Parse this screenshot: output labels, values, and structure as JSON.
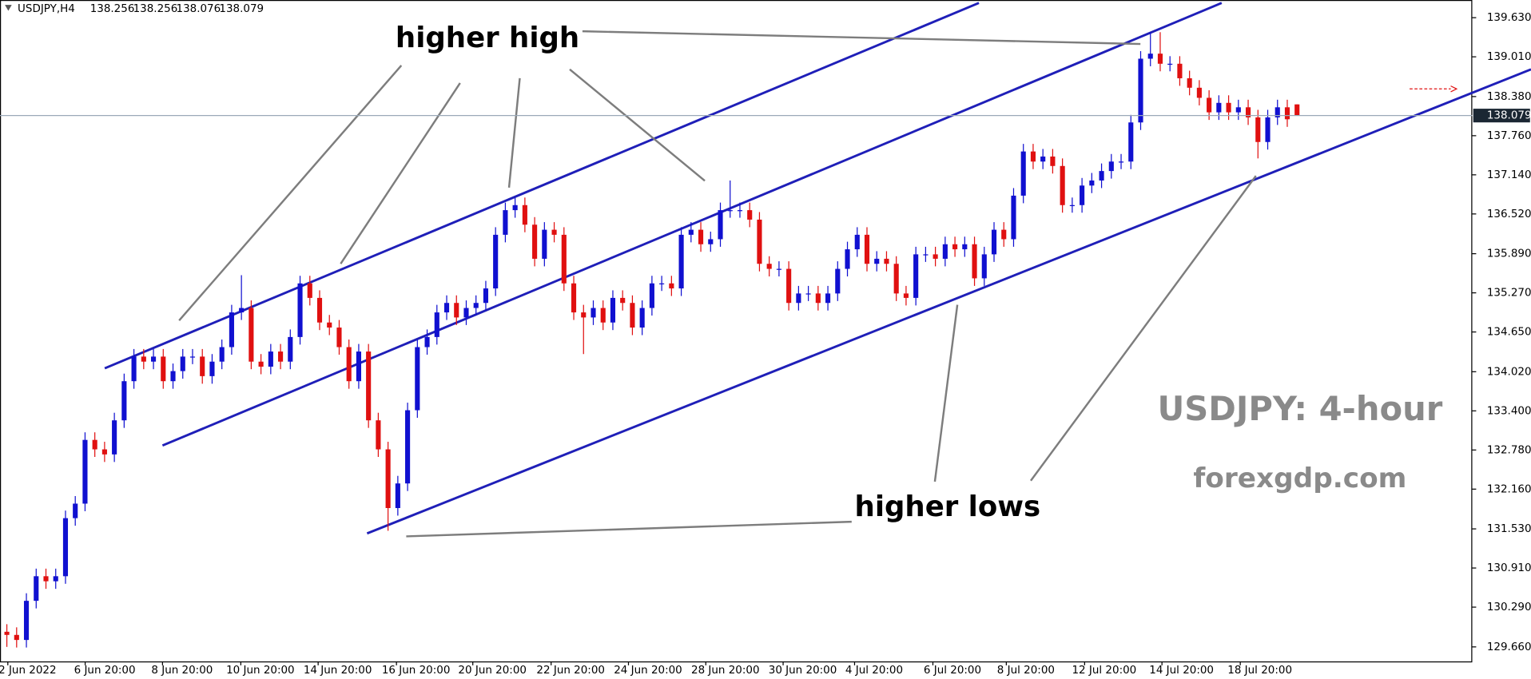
{
  "chart_data": {
    "type": "candlestick",
    "symbol": "USDJPY,H4",
    "up_color": "#1010d0",
    "down_color": "#e01010",
    "x_labels": [
      "2 Jun 2022",
      "6 Jun 20:00",
      "8 Jun 20:00",
      "10 Jun 20:00",
      "14 Jun 20:00",
      "16 Jun 20:00",
      "20 Jun 20:00",
      "22 Jun 20:00",
      "24 Jun 20:00",
      "28 Jun 20:00",
      "30 Jun 20:00",
      "4 Jul 20:00",
      "6 Jul 20:00",
      "8 Jul 20:00",
      "12 Jul 20:00",
      "14 Jul 20:00",
      "18 Jul 20:00"
    ],
    "open": [
      129.9,
      129.85,
      129.77,
      130.39,
      130.78,
      130.7,
      130.78,
      131.7,
      131.93,
      132.94,
      132.79,
      132.71,
      133.25,
      133.87,
      134.26,
      134.18,
      134.26,
      133.87,
      134.03,
      134.26,
      134.26,
      133.95,
      134.18,
      134.41,
      134.96,
      135.03,
      134.18,
      134.1,
      134.34,
      134.18,
      134.57,
      135.42,
      135.19,
      134.8,
      134.72,
      134.41,
      133.87,
      134.34,
      133.25,
      132.79,
      131.86,
      132.25,
      133.41,
      134.41,
      134.57,
      134.96,
      135.11,
      134.88,
      135.03,
      135.11,
      135.34,
      136.19,
      136.58,
      136.66,
      136.35,
      135.81,
      136.27,
      136.19,
      135.42,
      134.96,
      134.88,
      135.03,
      134.8,
      135.19,
      135.11,
      134.72,
      135.03,
      135.42,
      135.42,
      135.34,
      136.19,
      136.27,
      136.04,
      136.12,
      136.58,
      136.58,
      136.58,
      136.43,
      135.73,
      135.65,
      135.65,
      135.11,
      135.26,
      135.26,
      135.11,
      135.26,
      135.65,
      135.96,
      136.19,
      135.73,
      135.81,
      135.73,
      135.26,
      135.19,
      135.88,
      135.88,
      135.81,
      136.04,
      135.96,
      136.04,
      135.5,
      135.88,
      136.27,
      136.12,
      136.81,
      137.51,
      137.35,
      137.43,
      137.28,
      136.66,
      136.66,
      136.97,
      137.05,
      137.2,
      137.35,
      137.35,
      137.97,
      138.98,
      139.06,
      138.9,
      138.9,
      138.67,
      138.52,
      138.36,
      138.13,
      138.28,
      138.13,
      138.21,
      138.05,
      137.66,
      138.05,
      138.21,
      138.256
    ],
    "high": [
      130.02,
      129.97,
      130.51,
      130.9,
      130.9,
      130.9,
      131.82,
      132.05,
      133.06,
      133.06,
      132.91,
      133.37,
      133.99,
      134.38,
      134.38,
      134.38,
      134.38,
      134.15,
      134.38,
      134.38,
      134.38,
      134.3,
      134.53,
      135.08,
      135.55,
      135.15,
      134.3,
      134.46,
      134.46,
      134.69,
      135.54,
      135.54,
      135.31,
      134.92,
      134.84,
      134.53,
      134.46,
      134.46,
      133.37,
      132.91,
      132.37,
      133.53,
      134.53,
      134.69,
      135.08,
      135.23,
      135.23,
      135.15,
      135.23,
      135.46,
      136.31,
      136.7,
      136.78,
      136.78,
      136.47,
      136.39,
      136.39,
      136.31,
      135.54,
      135.08,
      135.15,
      135.15,
      135.31,
      135.31,
      135.23,
      135.15,
      135.54,
      135.54,
      135.54,
      136.31,
      136.39,
      136.39,
      136.24,
      136.7,
      137.05,
      136.7,
      136.7,
      136.55,
      135.85,
      135.77,
      135.77,
      135.38,
      135.38,
      135.38,
      135.38,
      135.77,
      136.08,
      136.31,
      136.31,
      135.93,
      135.93,
      135.85,
      135.38,
      136.0,
      136.0,
      136.0,
      136.16,
      136.16,
      136.16,
      136.16,
      136.0,
      136.39,
      136.39,
      136.93,
      137.63,
      137.63,
      137.55,
      137.55,
      137.4,
      136.78,
      137.09,
      137.17,
      137.32,
      137.47,
      137.47,
      138.09,
      139.1,
      139.4,
      139.4,
      139.02,
      139.02,
      138.79,
      138.64,
      138.48,
      138.4,
      138.4,
      138.33,
      138.33,
      138.17,
      138.17,
      138.33,
      138.33,
      138.256
    ],
    "low": [
      129.66,
      129.65,
      129.65,
      130.27,
      130.58,
      130.58,
      130.66,
      131.58,
      131.81,
      132.67,
      132.59,
      132.59,
      133.13,
      133.75,
      134.06,
      134.06,
      133.75,
      133.75,
      133.91,
      134.14,
      133.83,
      133.83,
      134.06,
      134.29,
      134.84,
      134.06,
      133.98,
      133.98,
      134.06,
      134.06,
      134.45,
      135.07,
      134.68,
      134.6,
      134.29,
      133.75,
      133.75,
      133.13,
      132.67,
      131.5,
      131.74,
      132.13,
      133.29,
      134.29,
      134.45,
      134.84,
      134.76,
      134.76,
      134.91,
      134.99,
      135.22,
      136.07,
      136.46,
      136.23,
      135.69,
      135.69,
      136.07,
      135.3,
      134.84,
      134.3,
      134.76,
      134.68,
      134.68,
      134.99,
      134.6,
      134.6,
      134.91,
      135.3,
      135.22,
      135.22,
      136.07,
      135.92,
      135.92,
      136.0,
      136.46,
      136.46,
      136.31,
      135.61,
      135.53,
      135.53,
      134.99,
      134.99,
      135.14,
      134.99,
      134.99,
      135.14,
      135.53,
      135.84,
      135.61,
      135.61,
      135.61,
      135.14,
      135.07,
      135.07,
      135.76,
      135.69,
      135.69,
      135.84,
      135.84,
      135.38,
      135.38,
      135.76,
      136.0,
      136.0,
      136.69,
      137.23,
      137.23,
      137.16,
      136.54,
      136.54,
      136.54,
      136.85,
      136.93,
      137.08,
      137.23,
      137.23,
      137.85,
      138.86,
      138.78,
      138.78,
      138.55,
      138.4,
      138.24,
      138.01,
      138.01,
      138.01,
      138.01,
      137.93,
      137.4,
      137.54,
      137.93,
      137.9,
      138.076
    ],
    "close": [
      129.85,
      129.77,
      130.39,
      130.78,
      130.7,
      130.78,
      131.7,
      131.93,
      132.94,
      132.79,
      132.71,
      133.25,
      133.87,
      134.26,
      134.18,
      134.26,
      133.87,
      134.03,
      134.26,
      134.26,
      133.95,
      134.18,
      134.41,
      134.96,
      135.03,
      134.18,
      134.1,
      134.34,
      134.18,
      134.57,
      135.42,
      135.19,
      134.8,
      134.72,
      134.41,
      133.87,
      134.34,
      133.25,
      132.79,
      131.86,
      132.25,
      133.41,
      134.41,
      134.57,
      134.96,
      135.11,
      134.88,
      135.03,
      135.11,
      135.34,
      136.19,
      136.58,
      136.66,
      136.35,
      135.81,
      136.27,
      136.19,
      135.42,
      134.96,
      134.88,
      135.03,
      134.8,
      135.19,
      135.11,
      134.72,
      135.03,
      135.42,
      135.42,
      135.34,
      136.19,
      136.27,
      136.04,
      136.12,
      136.58,
      136.58,
      136.58,
      136.43,
      135.73,
      135.65,
      135.65,
      135.11,
      135.26,
      135.26,
      135.11,
      135.26,
      135.65,
      135.96,
      136.19,
      135.73,
      135.81,
      135.73,
      135.26,
      135.19,
      135.88,
      135.88,
      135.81,
      136.04,
      135.96,
      136.04,
      135.5,
      135.88,
      136.27,
      136.12,
      136.81,
      137.51,
      137.35,
      137.43,
      137.28,
      136.66,
      136.66,
      136.97,
      137.05,
      137.2,
      137.35,
      137.35,
      137.97,
      138.98,
      139.06,
      138.9,
      138.9,
      138.67,
      138.52,
      138.36,
      138.13,
      138.28,
      138.13,
      138.21,
      138.05,
      137.66,
      138.05,
      138.21,
      138.02,
      138.079
    ],
    "ylim": [
      129.43,
      139.91
    ],
    "yticks": [
      {
        "value": 139.63,
        "label": "139.630"
      },
      {
        "value": 139.01,
        "label": "139.010"
      },
      {
        "value": 138.38,
        "label": "138.380"
      },
      {
        "value": 137.76,
        "label": "137.760"
      },
      {
        "value": 137.14,
        "label": "137.140"
      },
      {
        "value": 136.52,
        "label": "136.520"
      },
      {
        "value": 135.89,
        "label": "135.890"
      },
      {
        "value": 135.27,
        "label": "135.270"
      },
      {
        "value": 134.65,
        "label": "134.650"
      },
      {
        "value": 134.02,
        "label": "134.020"
      },
      {
        "value": 133.4,
        "label": "133.400"
      },
      {
        "value": 132.78,
        "label": "132.780"
      },
      {
        "value": 132.16,
        "label": "132.160"
      },
      {
        "value": 131.53,
        "label": "131.530"
      },
      {
        "value": 130.91,
        "label": "130.910"
      },
      {
        "value": 130.29,
        "label": "130.290"
      },
      {
        "value": 129.66,
        "label": "129.660"
      }
    ],
    "annotations": [
      "higher high",
      "higher lows",
      "USDJPY: 4-hour",
      "forexgdp.com"
    ]
  }
}
